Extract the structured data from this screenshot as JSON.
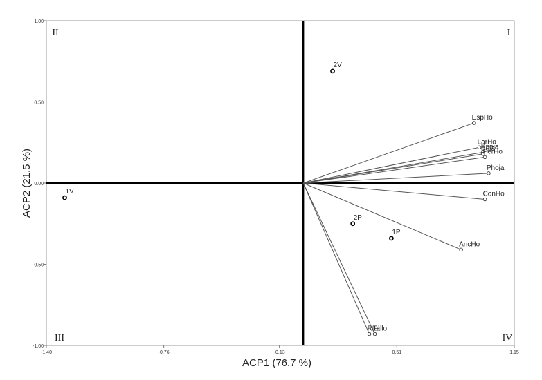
{
  "chart_data": {
    "type": "scatter",
    "title": "",
    "xlabel": "ACP1 (76.7 %)",
    "ylabel": "ACP2 (21.5 %)",
    "xlim": [
      -1.4,
      1.15
    ],
    "ylim": [
      -1.0,
      1.0
    ],
    "x_ticks": [
      "-1.40",
      "-0.76",
      "-0.13",
      "0.51",
      "1.15"
    ],
    "y_ticks": [
      "1.00",
      "0.50",
      "0.00",
      "-0.50",
      "-1.00"
    ],
    "quadrants": [
      "I",
      "II",
      "III",
      "IV"
    ],
    "grid": false,
    "observations": [
      {
        "label": "2V",
        "x": 0.16,
        "y": 0.69
      },
      {
        "label": "1V",
        "x": -1.3,
        "y": -0.09
      },
      {
        "label": "2P",
        "x": 0.27,
        "y": -0.25
      },
      {
        "label": "1P",
        "x": 0.48,
        "y": -0.34
      }
    ],
    "variables": [
      {
        "label": "EspHo",
        "x": 0.93,
        "y": 0.37
      },
      {
        "label": "LarHo",
        "x": 0.96,
        "y": 0.22
      },
      {
        "label": "Pnoja",
        "x": 0.98,
        "y": 0.19
      },
      {
        "label": "Beja",
        "x": 0.98,
        "y": 0.18
      },
      {
        "label": "PerHo",
        "x": 0.99,
        "y": 0.16
      },
      {
        "label": "Phoja",
        "x": 1.01,
        "y": 0.06
      },
      {
        "label": "ConHo",
        "x": 0.99,
        "y": -0.1
      },
      {
        "label": "AncHo",
        "x": 0.86,
        "y": -0.41
      },
      {
        "label": "Rtal",
        "x": 0.36,
        "y": -0.93
      },
      {
        "label": "Tallo",
        "x": 0.39,
        "y": -0.93
      }
    ]
  }
}
